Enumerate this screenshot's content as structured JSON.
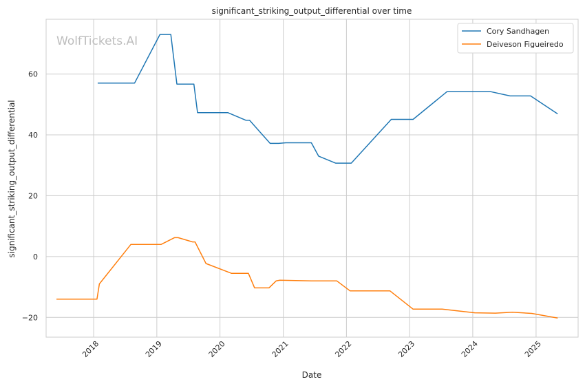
{
  "chart_data": {
    "type": "line",
    "title": "significant_striking_output_differential over time",
    "xlabel": "Date",
    "ylabel": "significant_striking_output_differential",
    "watermark": "WolfTickets.AI",
    "xlim": [
      "2017-04-01",
      "2025-09-01"
    ],
    "ylim": [
      -26.5,
      78
    ],
    "x_ticks": [
      {
        "date": "2018-01-01",
        "label": "2018"
      },
      {
        "date": "2019-01-01",
        "label": "2019"
      },
      {
        "date": "2020-01-01",
        "label": "2020"
      },
      {
        "date": "2021-01-01",
        "label": "2021"
      },
      {
        "date": "2022-01-01",
        "label": "2022"
      },
      {
        "date": "2023-01-01",
        "label": "2023"
      },
      {
        "date": "2024-01-01",
        "label": "2024"
      },
      {
        "date": "2025-01-01",
        "label": "2025"
      }
    ],
    "y_ticks": [
      {
        "value": -20,
        "label": "−20"
      },
      {
        "value": 0,
        "label": "0"
      },
      {
        "value": 20,
        "label": "20"
      },
      {
        "value": 40,
        "label": "40"
      },
      {
        "value": 60,
        "label": "60"
      }
    ],
    "grid": true,
    "legend_position": "top-right",
    "series": [
      {
        "name": "Cory Sandhagen",
        "color": "#1f77b4",
        "points": [
          [
            "2018-01-27",
            57
          ],
          [
            "2018-08-25",
            57
          ],
          [
            "2019-01-19",
            73
          ],
          [
            "2019-03-23",
            73
          ],
          [
            "2019-04-27",
            56.7
          ],
          [
            "2019-08-03",
            56.7
          ],
          [
            "2019-08-24",
            47.3
          ],
          [
            "2020-02-15",
            47.3
          ],
          [
            "2020-05-30",
            44.8
          ],
          [
            "2020-06-20",
            44.8
          ],
          [
            "2020-10-17",
            37.2
          ],
          [
            "2020-12-05",
            37.2
          ],
          [
            "2021-01-16",
            37.4
          ],
          [
            "2021-06-12",
            37.4
          ],
          [
            "2021-07-24",
            33
          ],
          [
            "2021-10-30",
            30.7
          ],
          [
            "2022-01-29",
            30.7
          ],
          [
            "2022-09-17",
            45.1
          ],
          [
            "2023-01-21",
            45.1
          ],
          [
            "2023-08-05",
            54.2
          ],
          [
            "2024-04-13",
            54.2
          ],
          [
            "2024-08-03",
            52.8
          ],
          [
            "2024-11-30",
            52.8
          ],
          [
            "2025-05-03",
            47
          ]
        ]
      },
      {
        "name": "Deiveson Figueiredo",
        "color": "#ff7f0e",
        "points": [
          [
            "2017-06-03",
            -14
          ],
          [
            "2018-01-20",
            -14
          ],
          [
            "2018-02-03",
            -9
          ],
          [
            "2018-08-04",
            4
          ],
          [
            "2019-01-26",
            4
          ],
          [
            "2019-04-13",
            6.2
          ],
          [
            "2019-05-04",
            6.2
          ],
          [
            "2019-07-27",
            4.8
          ],
          [
            "2019-08-10",
            4.8
          ],
          [
            "2019-10-12",
            -2.3
          ],
          [
            "2020-03-07",
            -5.5
          ],
          [
            "2020-06-13",
            -5.5
          ],
          [
            "2020-07-19",
            -10.3
          ],
          [
            "2020-10-10",
            -10.3
          ],
          [
            "2020-11-21",
            -8
          ],
          [
            "2020-12-12",
            -7.8
          ],
          [
            "2021-06-12",
            -8
          ],
          [
            "2021-11-06",
            -8
          ],
          [
            "2022-01-22",
            -11.3
          ],
          [
            "2022-09-10",
            -11.3
          ],
          [
            "2023-01-21",
            -17.3
          ],
          [
            "2023-07-08",
            -17.3
          ],
          [
            "2024-01-13",
            -18.5
          ],
          [
            "2024-05-11",
            -18.6
          ],
          [
            "2024-08-17",
            -18.3
          ],
          [
            "2024-12-07",
            -18.7
          ],
          [
            "2025-05-03",
            -20.2
          ]
        ]
      }
    ]
  }
}
